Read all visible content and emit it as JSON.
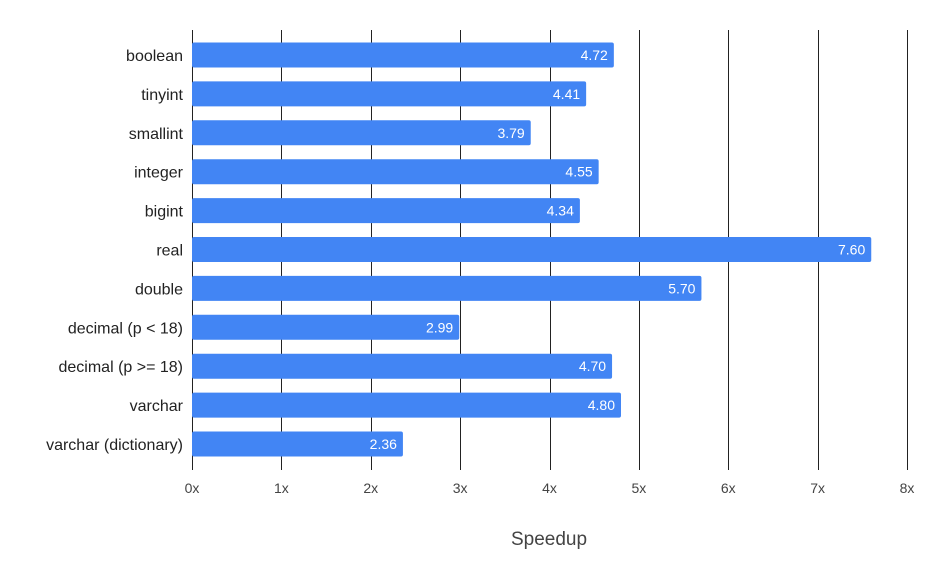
{
  "chart_data": {
    "type": "bar",
    "orientation": "horizontal",
    "categories": [
      "boolean",
      "tinyint",
      "smallint",
      "integer",
      "bigint",
      "real",
      "double",
      "decimal (p < 18)",
      "decimal (p >= 18)",
      "varchar",
      "varchar (dictionary)"
    ],
    "values": [
      4.72,
      4.41,
      3.79,
      4.55,
      4.34,
      7.6,
      5.7,
      2.99,
      4.7,
      4.8,
      2.36
    ],
    "data_labels": [
      "4.72",
      "4.41",
      "3.79",
      "4.55",
      "4.34",
      "7.60",
      "5.70",
      "2.99",
      "4.70",
      "4.80",
      "2.36"
    ],
    "title": "",
    "xlabel": "Speedup",
    "ylabel": "",
    "xlim": [
      0,
      8
    ],
    "x_ticks": [
      0,
      1,
      2,
      3,
      4,
      5,
      6,
      7,
      8
    ],
    "x_tick_labels": [
      "0x",
      "1x",
      "2x",
      "3x",
      "4x",
      "5x",
      "6x",
      "7x",
      "8x"
    ],
    "grid": "vertical",
    "legend": "none",
    "bar_color": "#4285f4",
    "gridline_color": "#222222"
  }
}
